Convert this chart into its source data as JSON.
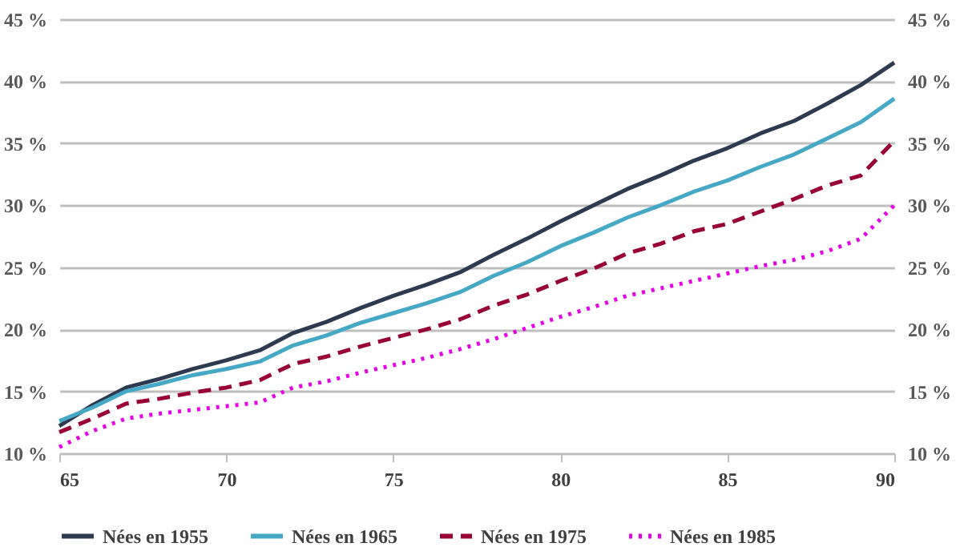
{
  "chart_data": {
    "type": "line",
    "x": [
      65,
      66,
      67,
      68,
      69,
      70,
      71,
      72,
      73,
      74,
      75,
      76,
      77,
      78,
      79,
      80,
      81,
      82,
      83,
      84,
      85,
      86,
      87,
      88,
      89,
      90
    ],
    "xlim": [
      65,
      90
    ],
    "xticks": [
      65,
      70,
      75,
      80,
      85,
      90
    ],
    "ylim": [
      10,
      45
    ],
    "yticks": [
      {
        "value": 10,
        "label": "10 %"
      },
      {
        "value": 15,
        "label": "15 %"
      },
      {
        "value": 20,
        "label": "20 %"
      },
      {
        "value": 25,
        "label": "25 %"
      },
      {
        "value": 30,
        "label": "30 %"
      },
      {
        "value": 35,
        "label": "35 %"
      },
      {
        "value": 40,
        "label": "40 %"
      },
      {
        "value": 45,
        "label": "45 %"
      }
    ],
    "y2lim": [
      10,
      45
    ],
    "y2ticks": [
      {
        "value": 10,
        "label": "10 %"
      },
      {
        "value": 15,
        "label": "15 %"
      },
      {
        "value": 20,
        "label": "20 %"
      },
      {
        "value": 25,
        "label": "25 %"
      },
      {
        "value": 30,
        "label": "30 %"
      },
      {
        "value": 35,
        "label": "35 %"
      },
      {
        "value": 40,
        "label": "40 %"
      },
      {
        "value": 45,
        "label": "45 %"
      }
    ],
    "grid": "y",
    "legend": "bottom",
    "marker": "none",
    "series": [
      {
        "name": "Nées en 1955",
        "color": "#2e3a4f",
        "line_style": "solid",
        "values": [
          12.2,
          13.9,
          15.3,
          16.0,
          16.8,
          17.5,
          18.3,
          19.7,
          20.6,
          21.7,
          22.7,
          23.6,
          24.6,
          26.0,
          27.3,
          28.7,
          30.0,
          31.3,
          32.4,
          33.6,
          34.6,
          35.8,
          36.8,
          38.2,
          39.7,
          41.5
        ]
      },
      {
        "name": "Nées en 1965",
        "color": "#45a9c6",
        "line_style": "solid",
        "values": [
          12.6,
          13.7,
          15.0,
          15.6,
          16.3,
          16.8,
          17.4,
          18.7,
          19.5,
          20.5,
          21.3,
          22.1,
          23.0,
          24.3,
          25.4,
          26.7,
          27.8,
          29.0,
          30.0,
          31.1,
          32.0,
          33.1,
          34.1,
          35.4,
          36.7,
          38.6
        ]
      },
      {
        "name": "Nées en 1975",
        "color": "#990033",
        "line_style": "dashed",
        "values": [
          11.7,
          12.8,
          14.0,
          14.4,
          14.9,
          15.3,
          15.9,
          17.2,
          17.8,
          18.6,
          19.3,
          20.0,
          20.8,
          21.9,
          22.8,
          23.9,
          24.9,
          26.1,
          26.9,
          27.9,
          28.5,
          29.5,
          30.5,
          31.6,
          32.4,
          35.2
        ]
      },
      {
        "name": "Nées en 1985",
        "color": "#e600e6",
        "line_style": "dotted",
        "values": [
          10.5,
          11.8,
          12.8,
          13.2,
          13.5,
          13.8,
          14.1,
          15.3,
          15.8,
          16.5,
          17.1,
          17.7,
          18.4,
          19.2,
          20.1,
          21.0,
          21.8,
          22.7,
          23.3,
          23.9,
          24.5,
          25.1,
          25.6,
          26.3,
          27.3,
          30.0
        ]
      }
    ]
  }
}
